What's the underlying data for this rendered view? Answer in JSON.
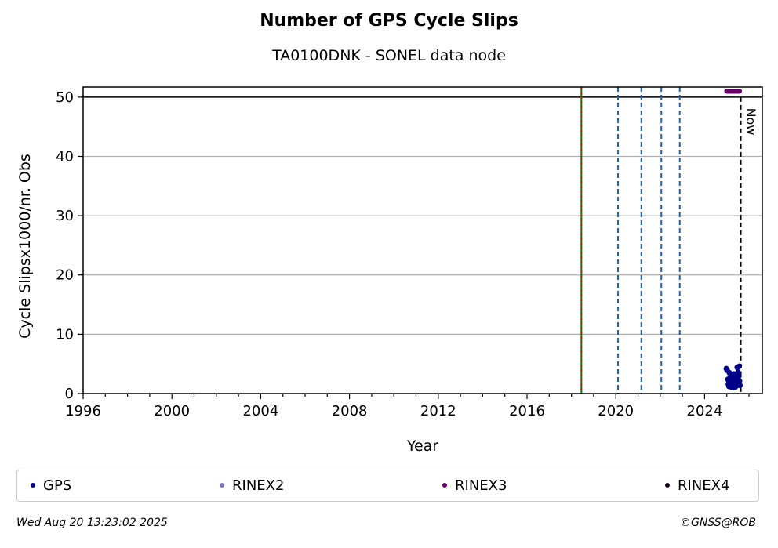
{
  "chart_data": {
    "type": "scatter",
    "title": "Number of GPS Cycle Slips",
    "subtitle": "TA0100DNK - SONEL data node",
    "xlabel": "Year",
    "ylabel": "Cycle Slipsx1000/nr. Obs",
    "xlim": [
      1996,
      2026.6
    ],
    "ylim": [
      0,
      51.7
    ],
    "x_ticks": [
      1996,
      2000,
      2004,
      2008,
      2012,
      2016,
      2020,
      2024
    ],
    "y_ticks": [
      0,
      10,
      20,
      30,
      40,
      50
    ],
    "grid": "horizontal",
    "cap_line": 50,
    "now_label": "Now",
    "now_x": 2025.63,
    "vlines": [
      {
        "x": 2018.45,
        "color": "#008000",
        "style": "solid"
      },
      {
        "x": 2018.45,
        "color": "#ff0000",
        "style": "dashed"
      },
      {
        "x": 2020.1,
        "color": "#1f5fb4",
        "style": "dashed"
      },
      {
        "x": 2021.15,
        "color": "#1f5fb4",
        "style": "dashed"
      },
      {
        "x": 2022.05,
        "color": "#1f5fb4",
        "style": "dashed"
      },
      {
        "x": 2022.88,
        "color": "#1f5fb4",
        "style": "dashed"
      }
    ],
    "series": [
      {
        "name": "GPS",
        "color": "#00008b",
        "points": [
          [
            2024.98,
            4.2
          ],
          [
            2025.02,
            3.9
          ],
          [
            2025.05,
            2.4
          ],
          [
            2025.07,
            1.6
          ],
          [
            2025.09,
            2.1
          ],
          [
            2025.1,
            1.2
          ],
          [
            2025.12,
            3.5
          ],
          [
            2025.13,
            1.8
          ],
          [
            2025.15,
            2.6
          ],
          [
            2025.17,
            1.4
          ],
          [
            2025.18,
            2.9
          ],
          [
            2025.2,
            2.0
          ],
          [
            2025.21,
            1.1
          ],
          [
            2025.23,
            3.1
          ],
          [
            2025.24,
            1.7
          ],
          [
            2025.26,
            2.4
          ],
          [
            2025.27,
            1.3
          ],
          [
            2025.29,
            2.8
          ],
          [
            2025.3,
            1.9
          ],
          [
            2025.32,
            3.3
          ],
          [
            2025.33,
            1.5
          ],
          [
            2025.35,
            2.2
          ],
          [
            2025.36,
            1.0
          ],
          [
            2025.38,
            2.7
          ],
          [
            2025.39,
            1.6
          ],
          [
            2025.41,
            3.0
          ],
          [
            2025.42,
            2.0
          ],
          [
            2025.44,
            1.3
          ],
          [
            2025.45,
            2.5
          ],
          [
            2025.47,
            4.4
          ],
          [
            2025.48,
            1.8
          ],
          [
            2025.5,
            2.3
          ],
          [
            2025.51,
            3.6
          ],
          [
            2025.53,
            1.5
          ],
          [
            2025.54,
            2.9
          ],
          [
            2025.56,
            4.6
          ],
          [
            2025.57,
            2.1
          ],
          [
            2025.59,
            1.4
          ]
        ]
      },
      {
        "name": "RINEX2",
        "color": "#7b7bbf",
        "points": []
      },
      {
        "name": "RINEX3",
        "color": "#660066",
        "points": [
          [
            2025.0,
            51
          ],
          [
            2025.03,
            51
          ],
          [
            2025.06,
            51
          ],
          [
            2025.09,
            51
          ],
          [
            2025.12,
            51
          ],
          [
            2025.15,
            51
          ],
          [
            2025.18,
            51
          ],
          [
            2025.21,
            51
          ],
          [
            2025.24,
            51
          ],
          [
            2025.27,
            51
          ],
          [
            2025.3,
            51
          ],
          [
            2025.33,
            51
          ],
          [
            2025.36,
            51
          ],
          [
            2025.39,
            51
          ],
          [
            2025.42,
            51
          ],
          [
            2025.45,
            51
          ],
          [
            2025.48,
            51
          ],
          [
            2025.51,
            51
          ],
          [
            2025.54,
            51
          ],
          [
            2025.57,
            51
          ]
        ]
      },
      {
        "name": "RINEX4",
        "color": "#1a0020",
        "points": []
      }
    ]
  },
  "legend": [
    {
      "label": "GPS",
      "color": "#00008b"
    },
    {
      "label": "RINEX2",
      "color": "#7b7bbf"
    },
    {
      "label": "RINEX3",
      "color": "#660066"
    },
    {
      "label": "RINEX4",
      "color": "#1a0020"
    }
  ],
  "footer": {
    "date": "Wed Aug 20 13:23:02 2025",
    "copyright": "©GNSS@ROB"
  }
}
